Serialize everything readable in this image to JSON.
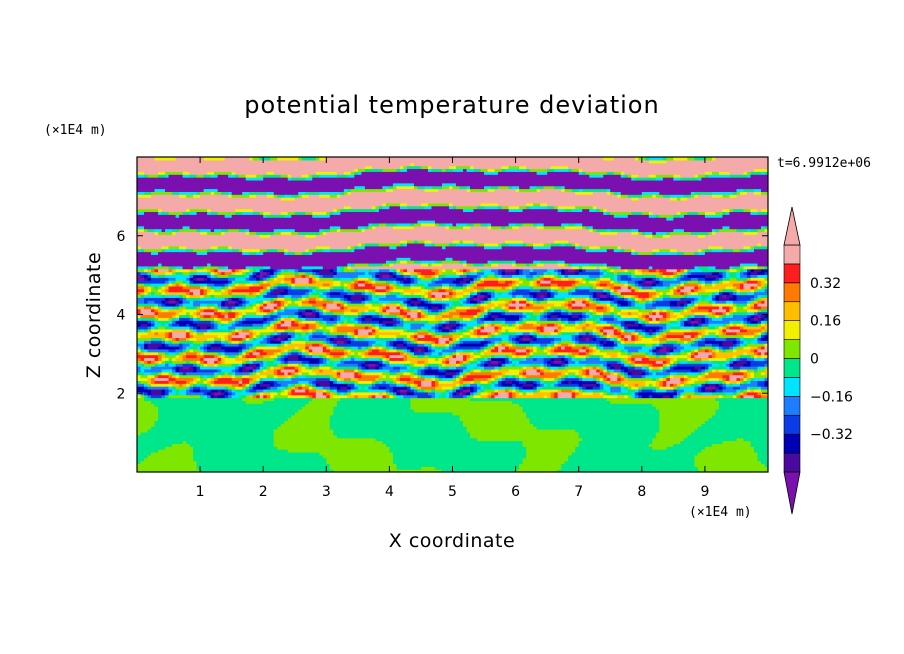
{
  "chart_data": {
    "type": "heatmap",
    "title": "potential temperature deviation",
    "xlabel": "X coordinate",
    "ylabel": "Z coordinate",
    "x_unit": "(×1E4 m)",
    "y_unit": "(×1E4 m)",
    "time_label": "t=6.9912e+06",
    "xlim": [
      0,
      10
    ],
    "ylim": [
      0,
      8
    ],
    "x_ticks": [
      1,
      2,
      3,
      4,
      5,
      6,
      7,
      8,
      9
    ],
    "y_ticks": [
      2,
      4,
      6
    ],
    "colorbar": {
      "levels": [
        -0.48,
        -0.4,
        -0.32,
        -0.24,
        -0.16,
        -0.08,
        0,
        0.08,
        0.16,
        0.24,
        0.32,
        0.4,
        0.48
      ],
      "colors": [
        "#7a10b0",
        "#4a0aa0",
        "#0000b4",
        "#0a3ce6",
        "#1e7dff",
        "#00e5ff",
        "#00e68a",
        "#7fe600",
        "#f0f000",
        "#ffbf00",
        "#ff7a00",
        "#ff1e1e",
        "#f5aaaa"
      ],
      "tick_values": [
        -0.32,
        -0.16,
        0,
        0.16,
        0.32
      ],
      "tick_labels": [
        "−0.32",
        "−0.16",
        "0",
        "0.16",
        "0.32"
      ],
      "extend": "both"
    },
    "layers": [
      {
        "z_range": [
          0,
          1.9
        ],
        "description_values": [
          0,
          0.08
        ],
        "pattern": "mixed-layer"
      },
      {
        "z_range": [
          1.9,
          5.2
        ],
        "description_values": [
          -0.48,
          0.48
        ],
        "pattern": "turbulent-bands"
      },
      {
        "z_range": [
          5.2,
          8
        ],
        "description_values": [
          -0.48,
          0.48
        ],
        "pattern": "alternating-bands"
      }
    ]
  }
}
